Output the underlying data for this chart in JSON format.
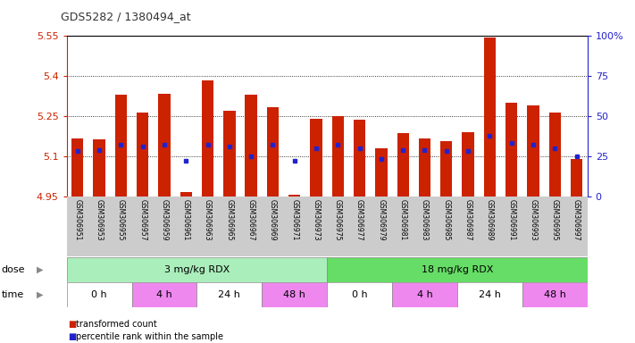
{
  "title": "GDS5282 / 1380494_at",
  "samples": [
    "GSM306951",
    "GSM306953",
    "GSM306955",
    "GSM306957",
    "GSM306959",
    "GSM306961",
    "GSM306963",
    "GSM306965",
    "GSM306967",
    "GSM306969",
    "GSM306971",
    "GSM306973",
    "GSM306975",
    "GSM306977",
    "GSM306979",
    "GSM306981",
    "GSM306983",
    "GSM306985",
    "GSM306987",
    "GSM306989",
    "GSM306991",
    "GSM306993",
    "GSM306995",
    "GSM306997"
  ],
  "bar_values": [
    5.165,
    5.163,
    5.33,
    5.265,
    5.335,
    4.965,
    5.385,
    5.27,
    5.33,
    5.285,
    4.955,
    5.24,
    5.25,
    5.235,
    5.13,
    5.185,
    5.165,
    5.155,
    5.19,
    5.545,
    5.3,
    5.29,
    5.265,
    5.09
  ],
  "percentile_values": [
    28,
    29,
    32,
    31,
    32,
    22,
    32,
    31,
    25,
    32,
    22,
    30,
    32,
    30,
    23,
    29,
    29,
    28,
    28,
    38,
    33,
    32,
    30,
    25
  ],
  "y_min": 4.95,
  "y_max": 5.55,
  "y_ticks": [
    4.95,
    5.1,
    5.25,
    5.4,
    5.55
  ],
  "bar_color": "#cc2200",
  "blue_color": "#2222cc",
  "axis_color": "#cc2200",
  "right_axis_color": "#2222cc",
  "dose_groups": [
    {
      "label": "3 mg/kg RDX",
      "start": 0,
      "end": 12,
      "color": "#aaeebb"
    },
    {
      "label": "18 mg/kg RDX",
      "start": 12,
      "end": 24,
      "color": "#66dd66"
    }
  ],
  "time_groups": [
    {
      "label": "0 h",
      "start": 0,
      "end": 3,
      "color": "#ffffff"
    },
    {
      "label": "4 h",
      "start": 3,
      "end": 6,
      "color": "#ee88ee"
    },
    {
      "label": "24 h",
      "start": 6,
      "end": 9,
      "color": "#ffffff"
    },
    {
      "label": "48 h",
      "start": 9,
      "end": 12,
      "color": "#ee88ee"
    },
    {
      "label": "0 h",
      "start": 12,
      "end": 15,
      "color": "#ffffff"
    },
    {
      "label": "4 h",
      "start": 15,
      "end": 18,
      "color": "#ee88ee"
    },
    {
      "label": "24 h",
      "start": 18,
      "end": 21,
      "color": "#ffffff"
    },
    {
      "label": "48 h",
      "start": 21,
      "end": 24,
      "color": "#ee88ee"
    }
  ],
  "bar_width": 0.55,
  "background_color": "#ffffff",
  "tick_label_bg": "#cccccc",
  "grid_color": "#000000",
  "legend_items": [
    {
      "color": "#cc2200",
      "label": "transformed count"
    },
    {
      "color": "#2222cc",
      "label": "percentile rank within the sample"
    }
  ]
}
